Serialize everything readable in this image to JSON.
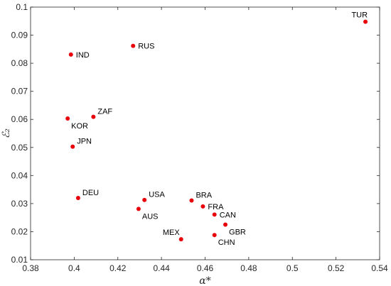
{
  "chart_data": {
    "type": "scatter",
    "xlabel": "α*",
    "ylabel": "ℰ₂",
    "xlim": [
      0.38,
      0.54
    ],
    "ylim": [
      0.01,
      0.1
    ],
    "x_ticks": [
      "0.38",
      "0.4",
      "0.42",
      "0.44",
      "0.46",
      "0.48",
      "0.5",
      "0.52",
      "0.54"
    ],
    "y_ticks": [
      "0.01",
      "0.02",
      "0.03",
      "0.04",
      "0.05",
      "0.06",
      "0.07",
      "0.08",
      "0.09",
      "0.1"
    ],
    "marker_color": "#e8000b",
    "grid": false,
    "points": [
      {
        "label": "TUR",
        "x": 0.5335,
        "y": 0.0948,
        "label_pos": "top-left"
      },
      {
        "label": "RUS",
        "x": 0.427,
        "y": 0.0862,
        "label_pos": "right"
      },
      {
        "label": "IND",
        "x": 0.3985,
        "y": 0.0831,
        "label_pos": "right"
      },
      {
        "label": "ZAF",
        "x": 0.4088,
        "y": 0.0609,
        "label_pos": "top-right"
      },
      {
        "label": "KOR",
        "x": 0.397,
        "y": 0.0603,
        "label_pos": "bottom-right"
      },
      {
        "label": "JPN",
        "x": 0.3993,
        "y": 0.0503,
        "label_pos": "top-right"
      },
      {
        "label": "DEU",
        "x": 0.4018,
        "y": 0.032,
        "label_pos": "top-right"
      },
      {
        "label": "USA",
        "x": 0.4322,
        "y": 0.0313,
        "label_pos": "top-right"
      },
      {
        "label": "AUS",
        "x": 0.4295,
        "y": 0.0281,
        "label_pos": "bottom-right"
      },
      {
        "label": "BRA",
        "x": 0.4538,
        "y": 0.0311,
        "label_pos": "top-right"
      },
      {
        "label": "FRA",
        "x": 0.459,
        "y": 0.029,
        "label_pos": "right"
      },
      {
        "label": "CAN",
        "x": 0.4643,
        "y": 0.0261,
        "label_pos": "right"
      },
      {
        "label": "GBR",
        "x": 0.4693,
        "y": 0.0225,
        "label_pos": "bottom-right"
      },
      {
        "label": "MEX",
        "x": 0.449,
        "y": 0.0173,
        "label_pos": "top-left"
      },
      {
        "label": "CHN",
        "x": 0.4643,
        "y": 0.0188,
        "label_pos": "bottom-right"
      }
    ]
  }
}
